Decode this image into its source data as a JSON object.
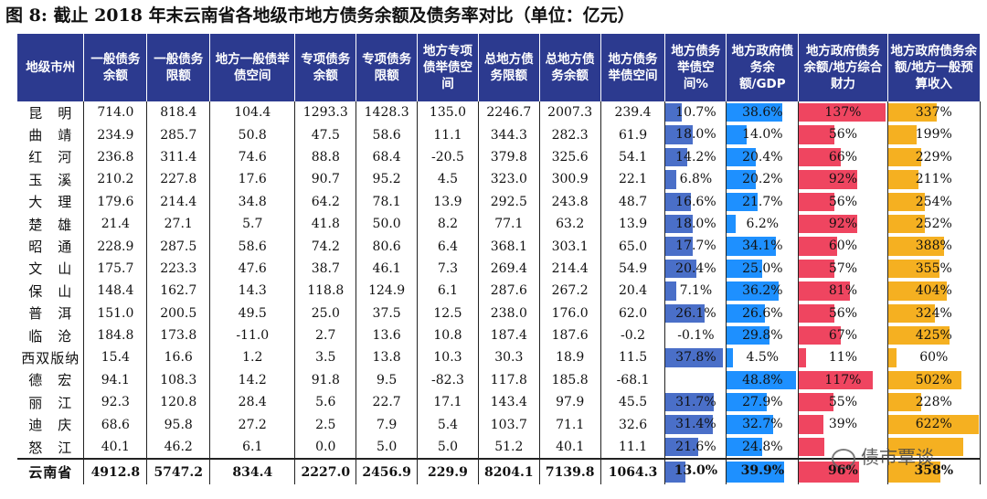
{
  "title": "图 8:  截止 2018 年末云南省各地级市地方债务余额及债务率对比（单位：亿元）",
  "headers": [
    "地级市州",
    "一般债务余额",
    "一般债务限额",
    "地方一般债举债空间",
    "专项债务余额",
    "专项债务限额",
    "地方专项债举债空间",
    "总地方债务限额",
    "总地方债务余额",
    "地方债务举债空间",
    "地方债务举债空间%",
    "地方政府债务余额/GDP",
    "地方政府债务余额/地方综合财力",
    "地方政府债务余额/地方一般预算收入"
  ],
  "rows": [
    {
      "city": "昆　明",
      "c1": "714.0",
      "c2": "818.4",
      "c3": "104.4",
      "c4": "1293.3",
      "c5": "1428.3",
      "c6": "135.0",
      "c7": "2246.7",
      "c8": "2007.3",
      "c9": "239.4",
      "p1": "10.7%",
      "v1": 10.7,
      "p2": "38.6%",
      "v2": 38.6,
      "p3": "137%",
      "v3": 137,
      "p4": "337%",
      "v4": 337
    },
    {
      "city": "曲　靖",
      "c1": "234.9",
      "c2": "285.7",
      "c3": "50.8",
      "c4": "47.5",
      "c5": "58.6",
      "c6": "11.1",
      "c7": "344.3",
      "c8": "282.3",
      "c9": "61.9",
      "p1": "18.0%",
      "v1": 18.0,
      "p2": "14.0%",
      "v2": 14.0,
      "p3": "56%",
      "v3": 56,
      "p4": "199%",
      "v4": 199
    },
    {
      "city": "红　河",
      "c1": "236.8",
      "c2": "311.4",
      "c3": "74.6",
      "c4": "88.8",
      "c5": "68.4",
      "c6": "-20.5",
      "c7": "379.8",
      "c8": "325.6",
      "c9": "54.1",
      "p1": "14.2%",
      "v1": 14.2,
      "p2": "20.4%",
      "v2": 20.4,
      "p3": "66%",
      "v3": 66,
      "p4": "229%",
      "v4": 229
    },
    {
      "city": "玉　溪",
      "c1": "210.2",
      "c2": "227.8",
      "c3": "17.6",
      "c4": "90.7",
      "c5": "95.2",
      "c6": "4.5",
      "c7": "323.0",
      "c8": "300.9",
      "c9": "22.1",
      "p1": "6.8%",
      "v1": 6.8,
      "p2": "20.2%",
      "v2": 20.2,
      "p3": "92%",
      "v3": 92,
      "p4": "211%",
      "v4": 211
    },
    {
      "city": "大　理",
      "c1": "179.6",
      "c2": "214.4",
      "c3": "34.8",
      "c4": "64.2",
      "c5": "78.1",
      "c6": "13.9",
      "c7": "292.5",
      "c8": "243.8",
      "c9": "48.7",
      "p1": "16.6%",
      "v1": 16.6,
      "p2": "21.7%",
      "v2": 21.7,
      "p3": "56%",
      "v3": 56,
      "p4": "254%",
      "v4": 254
    },
    {
      "city": "楚　雄",
      "c1": "21.4",
      "c2": "27.1",
      "c3": "5.7",
      "c4": "41.8",
      "c5": "50.0",
      "c6": "8.2",
      "c7": "77.1",
      "c8": "63.2",
      "c9": "13.9",
      "p1": "18.0%",
      "v1": 18.0,
      "p2": "6.2%",
      "v2": 6.2,
      "p3": "92%",
      "v3": 92,
      "p4": "252%",
      "v4": 252
    },
    {
      "city": "昭　通",
      "c1": "228.9",
      "c2": "287.5",
      "c3": "58.6",
      "c4": "74.2",
      "c5": "80.6",
      "c6": "6.4",
      "c7": "368.1",
      "c8": "303.1",
      "c9": "65.0",
      "p1": "17.7%",
      "v1": 17.7,
      "p2": "34.1%",
      "v2": 34.1,
      "p3": "60%",
      "v3": 60,
      "p4": "388%",
      "v4": 388
    },
    {
      "city": "文　山",
      "c1": "175.7",
      "c2": "223.3",
      "c3": "47.6",
      "c4": "38.7",
      "c5": "46.1",
      "c6": "7.3",
      "c7": "269.4",
      "c8": "214.4",
      "c9": "54.9",
      "p1": "20.4%",
      "v1": 20.4,
      "p2": "25.0%",
      "v2": 25.0,
      "p3": "57%",
      "v3": 57,
      "p4": "355%",
      "v4": 355
    },
    {
      "city": "保　山",
      "c1": "148.4",
      "c2": "162.7",
      "c3": "14.3",
      "c4": "118.8",
      "c5": "124.9",
      "c6": "6.1",
      "c7": "287.6",
      "c8": "267.2",
      "c9": "20.4",
      "p1": "7.1%",
      "v1": 7.1,
      "p2": "36.2%",
      "v2": 36.2,
      "p3": "81%",
      "v3": 81,
      "p4": "404%",
      "v4": 404
    },
    {
      "city": "普　洱",
      "c1": "151.0",
      "c2": "200.5",
      "c3": "49.5",
      "c4": "25.0",
      "c5": "37.5",
      "c6": "12.5",
      "c7": "238.0",
      "c8": "176.0",
      "c9": "62.0",
      "p1": "26.1%",
      "v1": 26.1,
      "p2": "26.6%",
      "v2": 26.6,
      "p3": "56%",
      "v3": 56,
      "p4": "324%",
      "v4": 324
    },
    {
      "city": "临　沧",
      "c1": "184.8",
      "c2": "173.8",
      "c3": "-11.0",
      "c4": "2.7",
      "c5": "13.6",
      "c6": "10.8",
      "c7": "187.4",
      "c8": "187.6",
      "c9": "-0.2",
      "p1": "-0.1%",
      "v1": 0,
      "p2": "29.8%",
      "v2": 29.8,
      "p3": "67%",
      "v3": 67,
      "p4": "425%",
      "v4": 425
    },
    {
      "city": "西双版纳",
      "c1": "15.4",
      "c2": "16.6",
      "c3": "1.2",
      "c4": "3.5",
      "c5": "13.8",
      "c6": "10.3",
      "c7": "30.3",
      "c8": "18.9",
      "c9": "11.5",
      "p1": "37.8%",
      "v1": 37.8,
      "p2": "4.5%",
      "v2": 4.5,
      "p3": "11%",
      "v3": 11,
      "p4": "60%",
      "v4": 60
    },
    {
      "city": "德　宏",
      "c1": "94.1",
      "c2": "108.3",
      "c3": "14.2",
      "c4": "91.8",
      "c5": "9.5",
      "c6": "-82.3",
      "c7": "117.8",
      "c8": "185.8",
      "c9": "-68.1",
      "p1": "",
      "v1": 0,
      "p2": "48.8%",
      "v2": 48.8,
      "p3": "117%",
      "v3": 117,
      "p4": "502%",
      "v4": 502
    },
    {
      "city": "丽　江",
      "c1": "92.3",
      "c2": "120.8",
      "c3": "28.4",
      "c4": "5.6",
      "c5": "22.7",
      "c6": "17.1",
      "c7": "143.4",
      "c8": "97.9",
      "c9": "45.5",
      "p1": "31.7%",
      "v1": 31.7,
      "p2": "27.9%",
      "v2": 27.9,
      "p3": "55%",
      "v3": 55,
      "p4": "228%",
      "v4": 228
    },
    {
      "city": "迪　庆",
      "c1": "68.6",
      "c2": "95.8",
      "c3": "27.2",
      "c4": "2.5",
      "c5": "7.9",
      "c6": "5.4",
      "c7": "103.7",
      "c8": "71.1",
      "c9": "32.6",
      "p1": "31.4%",
      "v1": 31.4,
      "p2": "32.7%",
      "v2": 32.7,
      "p3": "39%",
      "v3": 39,
      "p4": "622%",
      "v4": 622
    },
    {
      "city": "怒　江",
      "c1": "40.1",
      "c2": "46.2",
      "c3": "6.1",
      "c4": "0.0",
      "c5": "5.0",
      "c6": "5.0",
      "c7": "51.2",
      "c8": "40.1",
      "c9": "11.1",
      "p1": "21.6%",
      "v1": 21.6,
      "p2": "24.8%",
      "v2": 24.8,
      "p3": "",
      "v3": 40,
      "p4": "",
      "v4": 520
    }
  ],
  "total": {
    "city": "云南省",
    "c1": "4912.8",
    "c2": "5747.2",
    "c3": "834.4",
    "c4": "2227.0",
    "c5": "2456.9",
    "c6": "229.9",
    "c7": "8204.1",
    "c8": "7139.8",
    "c9": "1064.3",
    "p1": "13.0%",
    "v1": 13.0,
    "p2": "39.9%",
    "v2": 39.9,
    "p3": "96%",
    "v3": 96,
    "p4": "358%",
    "v4": 358
  },
  "bar_colors": {
    "p1": "#4a6fc8",
    "p2": "#1e90ff",
    "p3": "#ef4560",
    "p4": "#f5b021"
  },
  "bar_max": {
    "p1": 40,
    "p2": 50,
    "p3": 140,
    "p4": 630
  },
  "watermark": "债市覃谈"
}
